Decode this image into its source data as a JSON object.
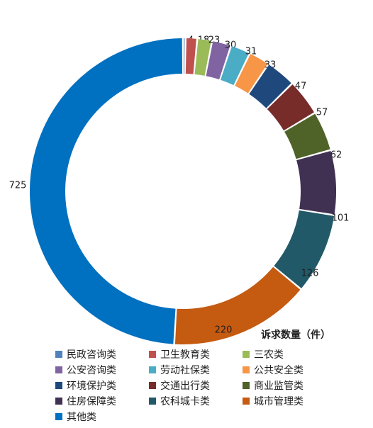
{
  "chart_data": {
    "type": "pie",
    "variant": "donut",
    "ylabel": "诉求数量（件）",
    "legend_position": "bottom",
    "categories": [
      "民政咨询类",
      "卫生教育类",
      "三农类",
      "公安咨询类",
      "劳动社保类",
      "公共安全类",
      "环境保护类",
      "交通出行类",
      "商业监管类",
      "住房保障类",
      "农科城卡类",
      "城市管理类",
      "其他类"
    ],
    "values": [
      4,
      18,
      23,
      30,
      31,
      33,
      47,
      57,
      62,
      101,
      126,
      220,
      725
    ],
    "colors": [
      "#4F81BD",
      "#C0504D",
      "#9BBB59",
      "#8064A2",
      "#4BACC6",
      "#F79646",
      "#1F497D",
      "#772C2A",
      "#4F6228",
      "#403152",
      "#215968",
      "#C55A11",
      "#0070C0"
    ]
  }
}
